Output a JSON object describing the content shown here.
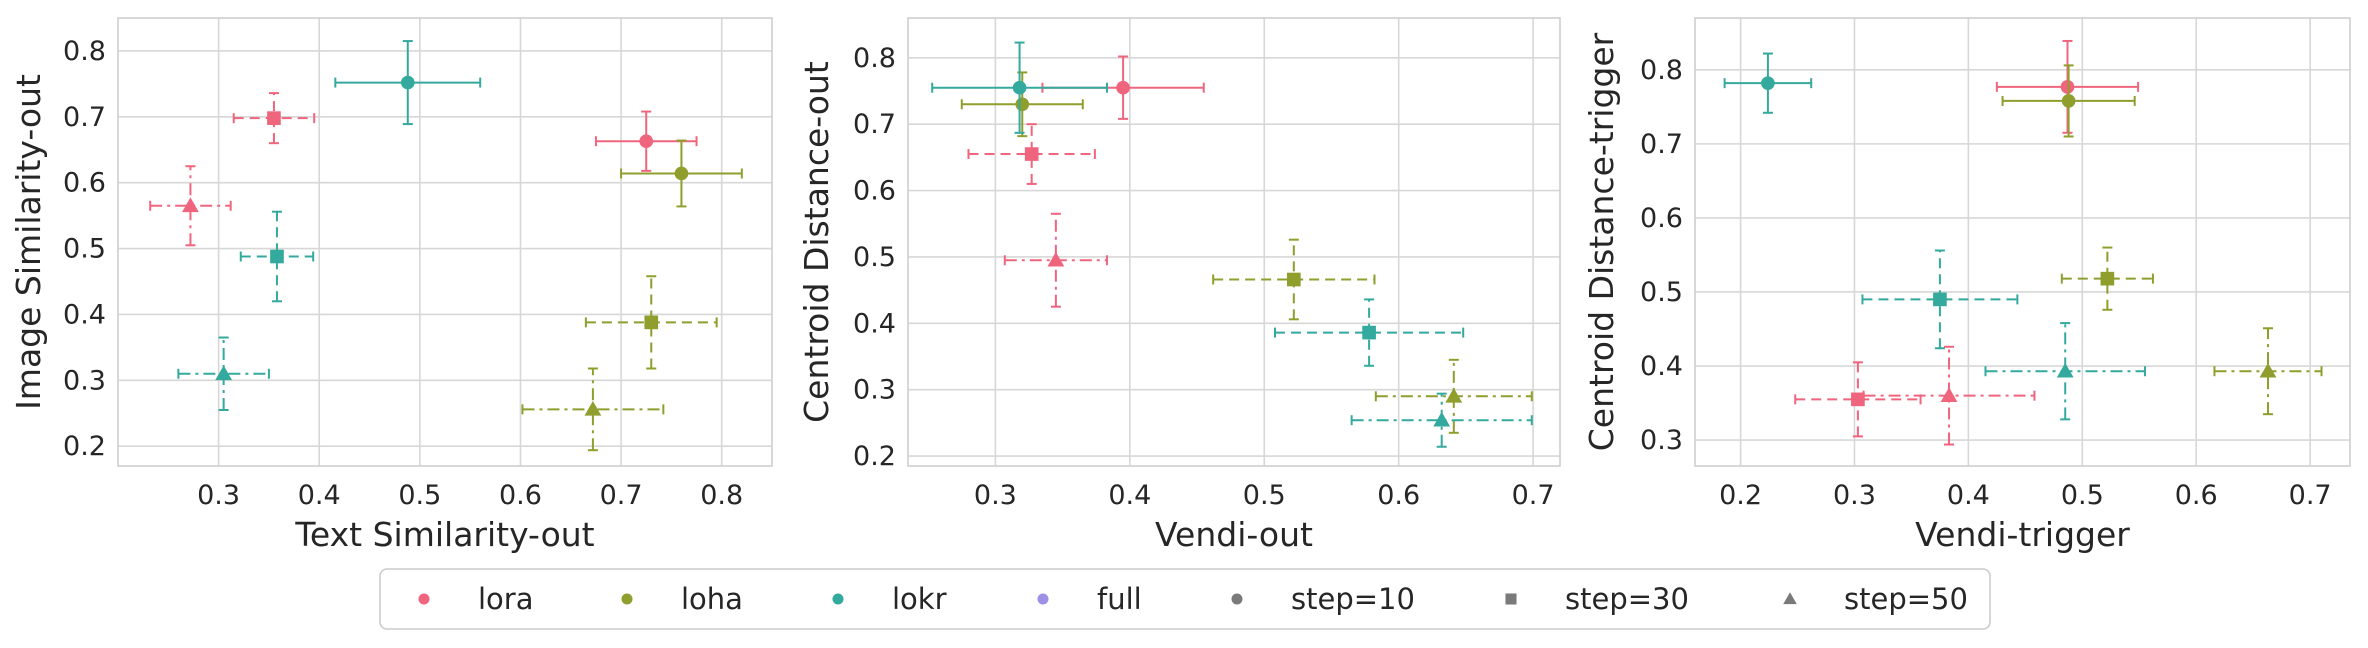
{
  "colors": {
    "lora": "#f0657e",
    "loha": "#8f9e2d",
    "lokr": "#34a99d",
    "full": "#9f8fe6",
    "step_marker": "#7a7a7a",
    "grid": "#d7d7d7",
    "axes_edge": "#cfcfcf"
  },
  "chart_data": [
    {
      "type": "scatter",
      "xlabel": "Text Similarity-out",
      "ylabel": "Image Similarity-out",
      "xlim": [
        0.2,
        0.85
      ],
      "ylim": [
        0.17,
        0.85
      ],
      "xticks": [
        0.3,
        0.4,
        0.5,
        0.6,
        0.7,
        0.8
      ],
      "yticks": [
        0.2,
        0.3,
        0.4,
        0.5,
        0.6,
        0.7,
        0.8
      ],
      "grid": true,
      "points": [
        {
          "method": "lora",
          "step": "step=10",
          "x": 0.725,
          "y": 0.663,
          "xerr": 0.05,
          "yerr": 0.045
        },
        {
          "method": "lora",
          "step": "step=30",
          "x": 0.355,
          "y": 0.698,
          "xerr": 0.04,
          "yerr": 0.038
        },
        {
          "method": "lora",
          "step": "step=50",
          "x": 0.272,
          "y": 0.565,
          "xerr": 0.04,
          "yerr": 0.06
        },
        {
          "method": "loha",
          "step": "step=10",
          "x": 0.76,
          "y": 0.614,
          "xerr": 0.06,
          "yerr": 0.05
        },
        {
          "method": "loha",
          "step": "step=30",
          "x": 0.73,
          "y": 0.388,
          "xerr": 0.065,
          "yerr": 0.07
        },
        {
          "method": "loha",
          "step": "step=50",
          "x": 0.672,
          "y": 0.256,
          "xerr": 0.07,
          "yerr": 0.062
        },
        {
          "method": "lokr",
          "step": "step=10",
          "x": 0.488,
          "y": 0.752,
          "xerr": 0.072,
          "yerr": 0.063
        },
        {
          "method": "lokr",
          "step": "step=30",
          "x": 0.358,
          "y": 0.488,
          "xerr": 0.036,
          "yerr": 0.068
        },
        {
          "method": "lokr",
          "step": "step=50",
          "x": 0.305,
          "y": 0.31,
          "xerr": 0.045,
          "yerr": 0.055
        }
      ]
    },
    {
      "type": "scatter",
      "xlabel": "Vendi-out",
      "ylabel": "Centroid Distance-out",
      "xlim": [
        0.235,
        0.72
      ],
      "ylim": [
        0.185,
        0.86
      ],
      "xticks": [
        0.3,
        0.4,
        0.5,
        0.6,
        0.7
      ],
      "yticks": [
        0.2,
        0.3,
        0.4,
        0.5,
        0.6,
        0.7,
        0.8
      ],
      "grid": true,
      "points": [
        {
          "method": "lora",
          "step": "step=10",
          "x": 0.395,
          "y": 0.755,
          "xerr": 0.06,
          "yerr": 0.047
        },
        {
          "method": "lora",
          "step": "step=30",
          "x": 0.327,
          "y": 0.655,
          "xerr": 0.047,
          "yerr": 0.045
        },
        {
          "method": "lora",
          "step": "step=50",
          "x": 0.345,
          "y": 0.495,
          "xerr": 0.038,
          "yerr": 0.07
        },
        {
          "method": "loha",
          "step": "step=10",
          "x": 0.32,
          "y": 0.73,
          "xerr": 0.045,
          "yerr": 0.048
        },
        {
          "method": "loha",
          "step": "step=30",
          "x": 0.522,
          "y": 0.466,
          "xerr": 0.06,
          "yerr": 0.06
        },
        {
          "method": "loha",
          "step": "step=50",
          "x": 0.641,
          "y": 0.29,
          "xerr": 0.058,
          "yerr": 0.055
        },
        {
          "method": "lokr",
          "step": "step=10",
          "x": 0.318,
          "y": 0.755,
          "xerr": 0.065,
          "yerr": 0.068
        },
        {
          "method": "lokr",
          "step": "step=30",
          "x": 0.578,
          "y": 0.386,
          "xerr": 0.07,
          "yerr": 0.05
        },
        {
          "method": "lokr",
          "step": "step=50",
          "x": 0.632,
          "y": 0.254,
          "xerr": 0.067,
          "yerr": 0.04
        }
      ]
    },
    {
      "type": "scatter",
      "xlabel": "Vendi-trigger",
      "ylabel": "Centroid Distance-trigger",
      "xlim": [
        0.16,
        0.735
      ],
      "ylim": [
        0.265,
        0.87
      ],
      "xticks": [
        0.2,
        0.3,
        0.4,
        0.5,
        0.6,
        0.7
      ],
      "yticks": [
        0.3,
        0.4,
        0.5,
        0.6,
        0.7,
        0.8
      ],
      "grid": true,
      "points": [
        {
          "method": "lora",
          "step": "step=10",
          "x": 0.487,
          "y": 0.777,
          "xerr": 0.062,
          "yerr": 0.062
        },
        {
          "method": "lora",
          "step": "step=30",
          "x": 0.303,
          "y": 0.355,
          "xerr": 0.055,
          "yerr": 0.05
        },
        {
          "method": "lora",
          "step": "step=50",
          "x": 0.383,
          "y": 0.36,
          "xerr": 0.075,
          "yerr": 0.066
        },
        {
          "method": "loha",
          "step": "step=10",
          "x": 0.488,
          "y": 0.758,
          "xerr": 0.058,
          "yerr": 0.048
        },
        {
          "method": "loha",
          "step": "step=30",
          "x": 0.522,
          "y": 0.518,
          "xerr": 0.04,
          "yerr": 0.042
        },
        {
          "method": "loha",
          "step": "step=50",
          "x": 0.663,
          "y": 0.393,
          "xerr": 0.047,
          "yerr": 0.058
        },
        {
          "method": "lokr",
          "step": "step=10",
          "x": 0.224,
          "y": 0.782,
          "xerr": 0.038,
          "yerr": 0.04
        },
        {
          "method": "lokr",
          "step": "step=30",
          "x": 0.375,
          "y": 0.49,
          "xerr": 0.068,
          "yerr": 0.066
        },
        {
          "method": "lokr",
          "step": "step=50",
          "x": 0.485,
          "y": 0.393,
          "xerr": 0.07,
          "yerr": 0.065
        }
      ]
    }
  ],
  "legend": {
    "placement": "bottom-center",
    "entries": [
      {
        "label": "lora",
        "marker": "circle",
        "color_key": "lora"
      },
      {
        "label": "loha",
        "marker": "circle",
        "color_key": "loha"
      },
      {
        "label": "lokr",
        "marker": "circle",
        "color_key": "lokr"
      },
      {
        "label": "full",
        "marker": "circle",
        "color_key": "full"
      },
      {
        "label": "step=10",
        "marker": "circle",
        "color_key": "step_marker"
      },
      {
        "label": "step=30",
        "marker": "square",
        "color_key": "step_marker"
      },
      {
        "label": "step=50",
        "marker": "triangle",
        "color_key": "step_marker"
      }
    ]
  }
}
